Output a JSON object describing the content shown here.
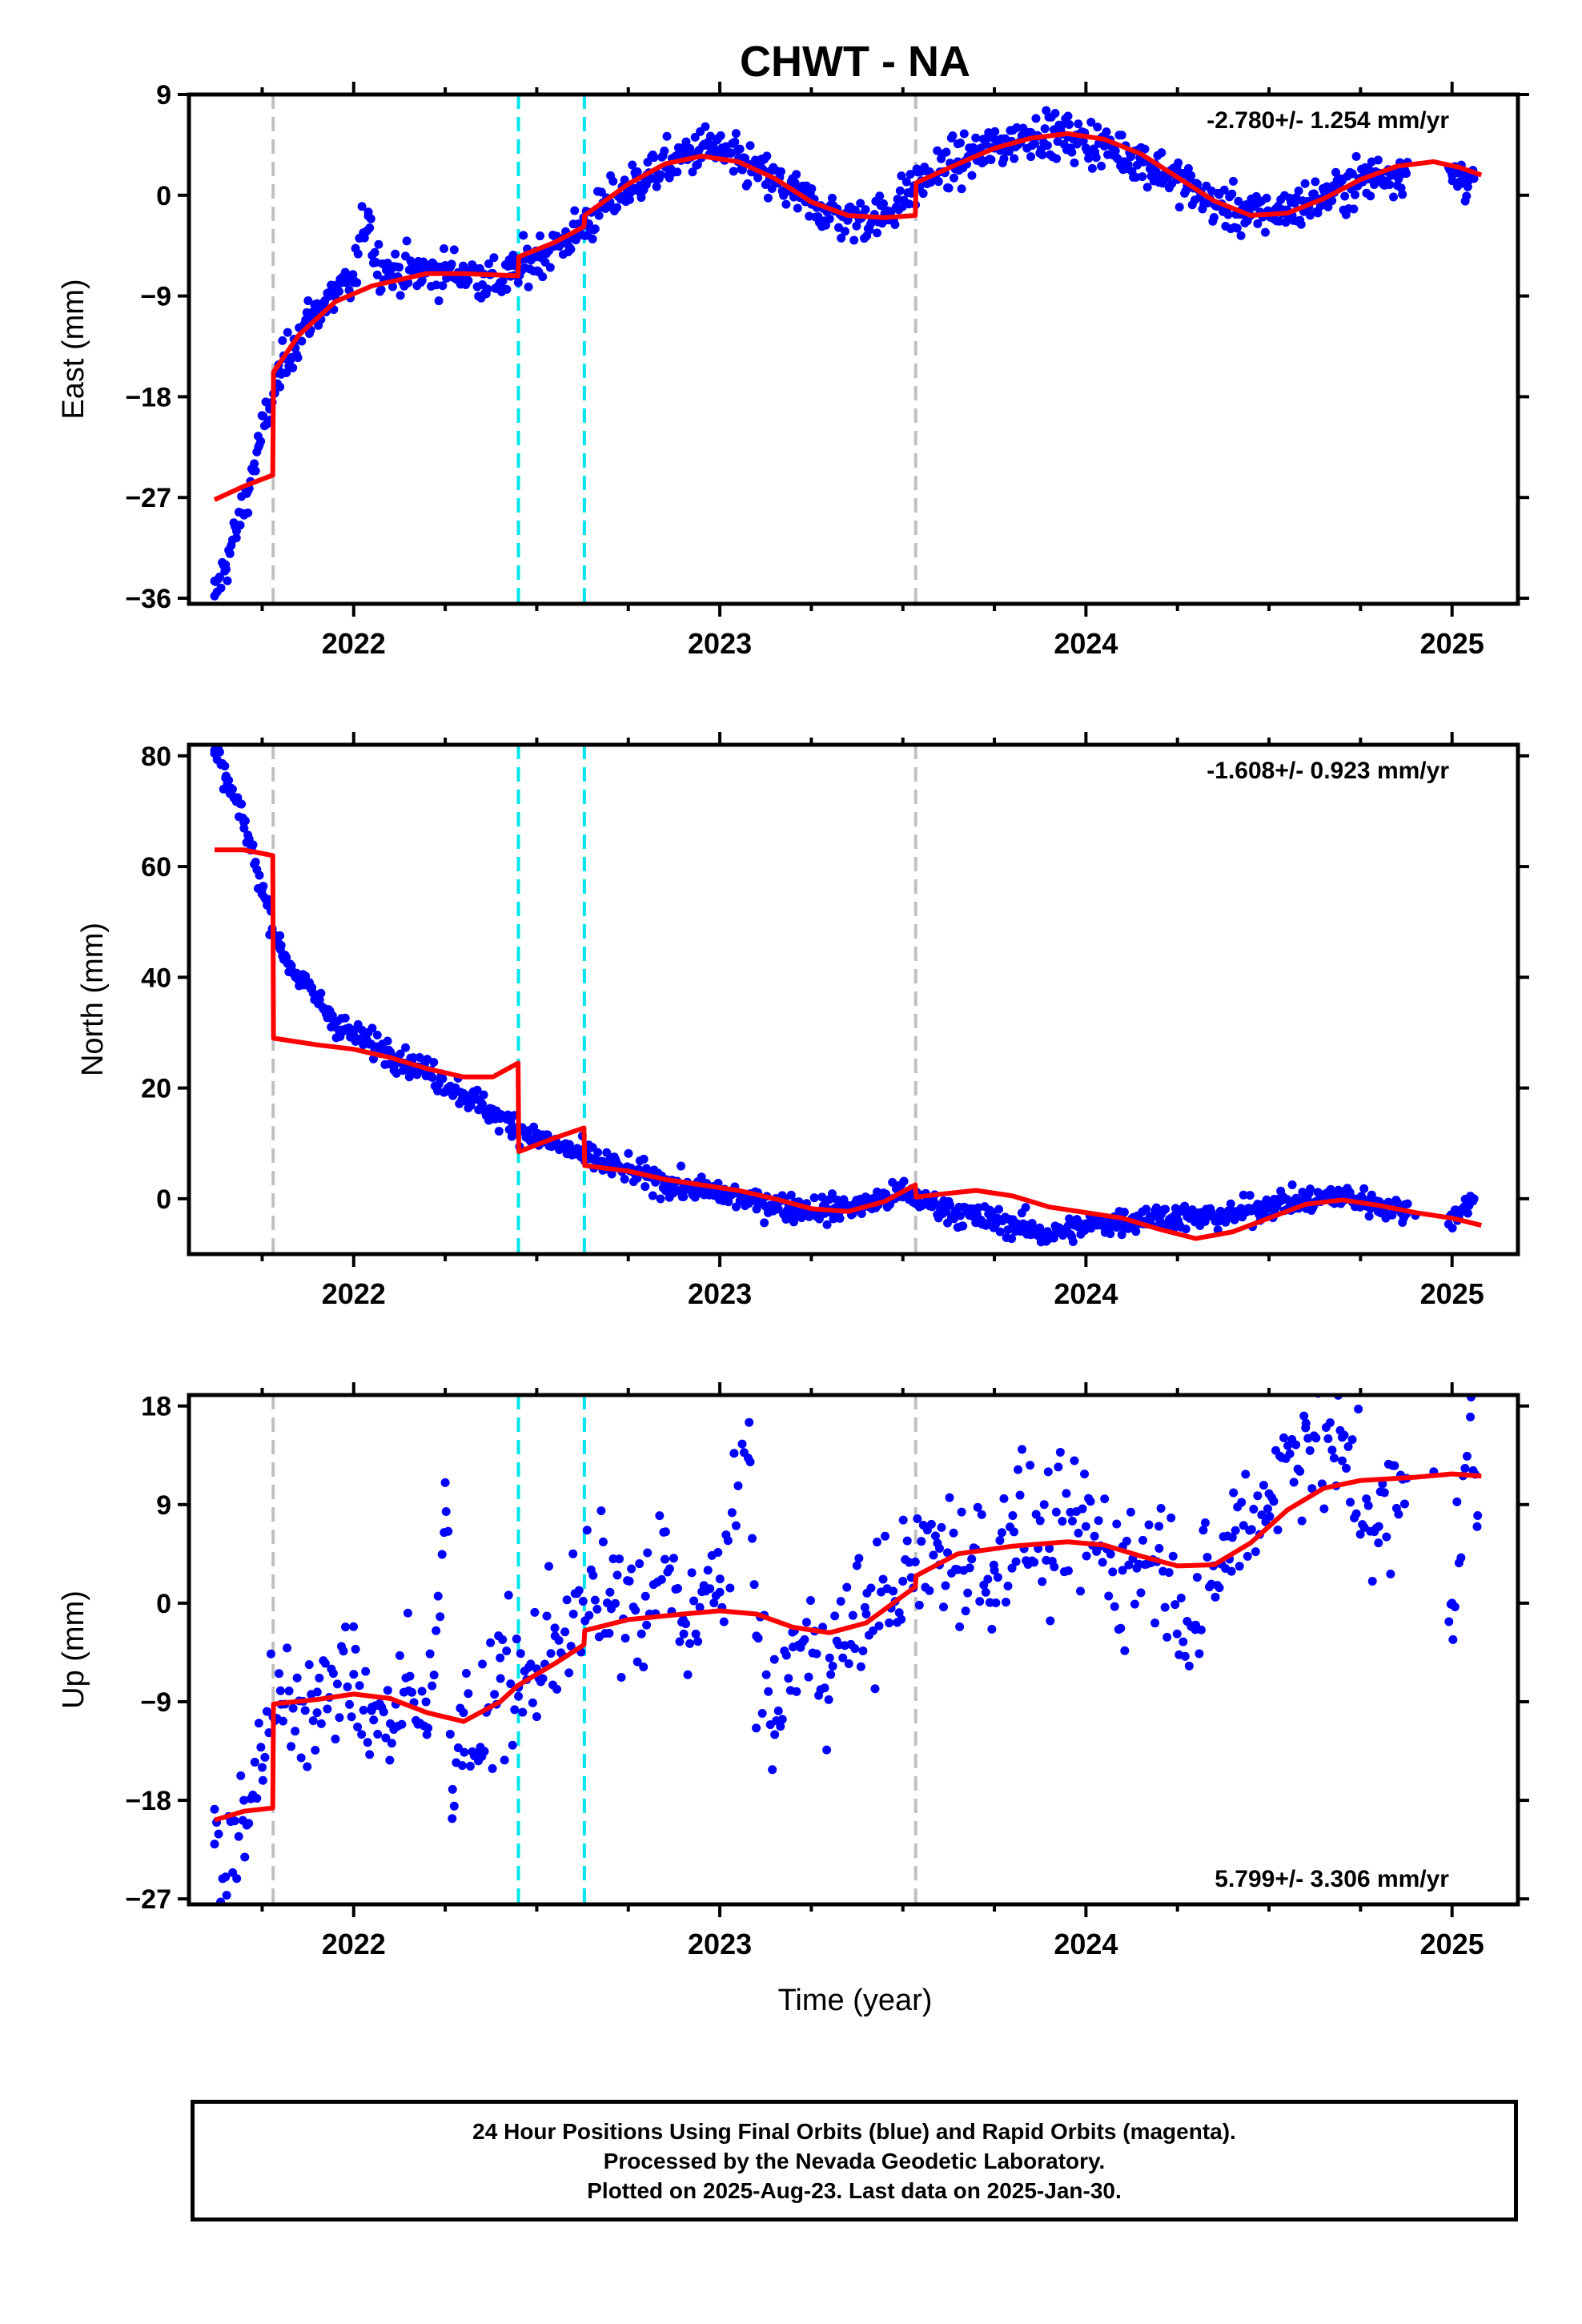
{
  "title": "CHWT - NA",
  "xlabel": "Time (year)",
  "footer": {
    "line1": "24 Hour Positions Using Final Orbits (blue) and Rapid Orbits (magenta).",
    "line2": "Processed by the Nevada Geodetic Laboratory.",
    "line3": "Plotted on 2025-Aug-23. Last data on 2025-Jan-30."
  },
  "colors": {
    "points": "#0000ff",
    "fit": "#ff0000",
    "gray_line": "#c0c0c0",
    "cyan_line": "#00e5ee"
  },
  "chart_data": [
    {
      "type": "scatter",
      "name": "east",
      "ylabel": "East (mm)",
      "rate": "-2.780+/- 1.254 mm/yr",
      "rate_position": "top-right",
      "xlim": [
        2021.55,
        2025.18
      ],
      "ylim": [
        -36.5,
        9
      ],
      "yticks": [
        9,
        0,
        -9,
        -18,
        -27,
        -36
      ],
      "ytick_labels": [
        "9",
        "0",
        "−9",
        "−18",
        "−27",
        "−36"
      ],
      "xticks": [
        2022,
        2023,
        2024,
        2025
      ],
      "xtick_labels": [
        "2022",
        "2023",
        "2024",
        "2025"
      ],
      "gray_events": [
        2021.78,
        2023.535
      ],
      "cyan_events": [
        2022.45,
        2022.63
      ],
      "fit": [
        [
          2021.62,
          -27.2
        ],
        [
          2021.7,
          -26.0
        ],
        [
          2021.779,
          -25.0
        ],
        [
          2021.781,
          -15.8
        ],
        [
          2021.85,
          -12.5
        ],
        [
          2021.95,
          -9.5
        ],
        [
          2022.05,
          -8.1
        ],
        [
          2022.2,
          -7.0
        ],
        [
          2022.3,
          -7.0
        ],
        [
          2022.449,
          -7.2
        ],
        [
          2022.451,
          -5.5
        ],
        [
          2022.55,
          -4.2
        ],
        [
          2022.629,
          -2.8
        ],
        [
          2022.631,
          -1.8
        ],
        [
          2022.75,
          1.0
        ],
        [
          2022.85,
          2.8
        ],
        [
          2022.95,
          3.5
        ],
        [
          2023.05,
          3.0
        ],
        [
          2023.15,
          1.5
        ],
        [
          2023.25,
          -0.6
        ],
        [
          2023.35,
          -1.8
        ],
        [
          2023.45,
          -2.0
        ],
        [
          2023.534,
          -1.8
        ],
        [
          2023.536,
          1.1
        ],
        [
          2023.65,
          2.8
        ],
        [
          2023.75,
          4.2
        ],
        [
          2023.85,
          5.1
        ],
        [
          2023.95,
          5.5
        ],
        [
          2024.05,
          5.0
        ],
        [
          2024.15,
          3.7
        ],
        [
          2024.25,
          1.6
        ],
        [
          2024.35,
          -0.5
        ],
        [
          2024.45,
          -1.8
        ],
        [
          2024.55,
          -1.6
        ],
        [
          2024.65,
          -0.3
        ],
        [
          2024.75,
          1.4
        ],
        [
          2024.85,
          2.6
        ],
        [
          2024.95,
          3.0
        ],
        [
          2025.02,
          2.5
        ],
        [
          2025.08,
          1.8
        ]
      ],
      "data": [
        [
          2021.62,
          -35.8
        ],
        [
          2021.65,
          -33.0
        ],
        [
          2021.68,
          -30.0
        ],
        [
          2021.71,
          -26.5
        ],
        [
          2021.74,
          -22.5
        ],
        [
          2021.77,
          -19.0
        ],
        [
          2021.8,
          -15.8
        ],
        [
          2021.84,
          -13.0
        ],
        [
          2021.88,
          -11.0
        ],
        [
          2021.92,
          -9.6
        ],
        [
          2021.96,
          -8.6
        ],
        [
          2022.0,
          -7.8
        ],
        [
          2022.02,
          -3.8
        ],
        [
          2022.04,
          -1.5
        ],
        [
          2022.06,
          -6.0
        ],
        [
          2022.1,
          -6.8
        ],
        [
          2022.2,
          -6.9
        ],
        [
          2022.3,
          -6.8
        ],
        [
          2022.4,
          -7.8
        ],
        [
          2022.5,
          -5.5
        ],
        [
          2022.6,
          -3.6
        ],
        [
          2022.7,
          -0.6
        ],
        [
          2022.8,
          1.8
        ],
        [
          2022.9,
          3.4
        ],
        [
          2022.97,
          4.4
        ],
        [
          2023.05,
          3.0
        ],
        [
          2023.15,
          1.2
        ],
        [
          2023.25,
          -0.8
        ],
        [
          2023.35,
          -2.2
        ],
        [
          2023.45,
          -1.8
        ],
        [
          2023.55,
          1.3
        ],
        [
          2023.65,
          3.0
        ],
        [
          2023.75,
          4.2
        ],
        [
          2023.85,
          5.6
        ],
        [
          2023.95,
          5.2
        ],
        [
          2024.05,
          4.4
        ],
        [
          2024.15,
          3.2
        ],
        [
          2024.25,
          1.4
        ],
        [
          2024.35,
          -0.8
        ],
        [
          2024.45,
          -1.8
        ],
        [
          2024.55,
          -1.3
        ],
        [
          2024.65,
          -0.2
        ],
        [
          2024.75,
          1.3
        ],
        [
          2024.85,
          2.2
        ],
        [
          2025.0,
          1.8
        ],
        [
          2025.06,
          1.5
        ]
      ]
    },
    {
      "type": "scatter",
      "name": "north",
      "ylabel": "North (mm)",
      "rate": "-1.608+/- 0.923 mm/yr",
      "rate_position": "top-right",
      "xlim": [
        2021.55,
        2025.18
      ],
      "ylim": [
        -10,
        82
      ],
      "yticks": [
        80,
        60,
        40,
        20,
        0
      ],
      "ytick_labels": [
        "80",
        "60",
        "40",
        "20",
        "0"
      ],
      "xticks": [
        2022,
        2023,
        2024,
        2025
      ],
      "xtick_labels": [
        "2022",
        "2023",
        "2024",
        "2025"
      ],
      "gray_events": [
        2021.78,
        2023.535
      ],
      "cyan_events": [
        2022.45,
        2022.63
      ],
      "fit": [
        [
          2021.62,
          63.0
        ],
        [
          2021.7,
          63.0
        ],
        [
          2021.779,
          62.0
        ],
        [
          2021.781,
          29.0
        ],
        [
          2021.9,
          27.8
        ],
        [
          2022.0,
          27.0
        ],
        [
          2022.1,
          25.5
        ],
        [
          2022.2,
          23.5
        ],
        [
          2022.3,
          22.0
        ],
        [
          2022.38,
          22.0
        ],
        [
          2022.449,
          24.5
        ],
        [
          2022.451,
          8.5
        ],
        [
          2022.55,
          11.0
        ],
        [
          2022.629,
          12.8
        ],
        [
          2022.631,
          6.0
        ],
        [
          2022.75,
          5.0
        ],
        [
          2022.85,
          3.5
        ],
        [
          2022.95,
          2.5
        ],
        [
          2023.05,
          1.5
        ],
        [
          2023.15,
          0.0
        ],
        [
          2023.25,
          -1.8
        ],
        [
          2023.35,
          -2.3
        ],
        [
          2023.45,
          -0.5
        ],
        [
          2023.534,
          2.5
        ],
        [
          2023.536,
          0.3
        ],
        [
          2023.6,
          0.8
        ],
        [
          2023.7,
          1.5
        ],
        [
          2023.8,
          0.5
        ],
        [
          2023.9,
          -1.5
        ],
        [
          2024.0,
          -2.5
        ],
        [
          2024.1,
          -3.5
        ],
        [
          2024.2,
          -5.5
        ],
        [
          2024.3,
          -7.2
        ],
        [
          2024.4,
          -6.0
        ],
        [
          2024.5,
          -3.5
        ],
        [
          2024.6,
          -1.0
        ],
        [
          2024.7,
          -0.2
        ],
        [
          2024.8,
          -1.2
        ],
        [
          2024.9,
          -2.5
        ],
        [
          2025.0,
          -3.5
        ],
        [
          2025.08,
          -4.8
        ]
      ],
      "data": [
        [
          2021.62,
          81.0
        ],
        [
          2021.65,
          76.0
        ],
        [
          2021.7,
          68.0
        ],
        [
          2021.75,
          56.0
        ],
        [
          2021.8,
          45.0
        ],
        [
          2021.85,
          40.0
        ],
        [
          2021.9,
          36.0
        ],
        [
          2021.95,
          32.0
        ],
        [
          2022.0,
          29.5
        ],
        [
          2022.1,
          26.5
        ],
        [
          2022.2,
          23.0
        ],
        [
          2022.3,
          19.0
        ],
        [
          2022.4,
          14.5
        ],
        [
          2022.5,
          11.0
        ],
        [
          2022.6,
          8.5
        ],
        [
          2022.7,
          6.0
        ],
        [
          2022.8,
          4.0
        ],
        [
          2022.9,
          2.0
        ],
        [
          2023.0,
          1.0
        ],
        [
          2023.1,
          -0.5
        ],
        [
          2023.2,
          -1.5
        ],
        [
          2023.3,
          -2.0
        ],
        [
          2023.4,
          -1.0
        ],
        [
          2023.5,
          1.0
        ],
        [
          2023.6,
          -1.5
        ],
        [
          2023.7,
          -3.5
        ],
        [
          2023.8,
          -4.5
        ],
        [
          2023.9,
          -6.5
        ],
        [
          2024.0,
          -5.0
        ],
        [
          2024.1,
          -4.0
        ],
        [
          2024.2,
          -3.0
        ],
        [
          2024.3,
          -3.5
        ],
        [
          2024.4,
          -3.0
        ],
        [
          2024.5,
          -1.0
        ],
        [
          2024.6,
          -0.5
        ],
        [
          2024.7,
          0.5
        ],
        [
          2024.8,
          -1.0
        ],
        [
          2024.9,
          -3.0
        ],
        [
          2025.0,
          -3.0
        ],
        [
          2025.06,
          0.0
        ]
      ]
    },
    {
      "type": "scatter",
      "name": "up",
      "ylabel": "Up (mm)",
      "rate": "5.799+/- 3.306 mm/yr",
      "rate_position": "bottom-right",
      "xlim": [
        2021.55,
        2025.18
      ],
      "ylim": [
        -27.5,
        19
      ],
      "yticks": [
        18,
        9,
        0,
        -9,
        -18,
        -27
      ],
      "ytick_labels": [
        "18",
        "9",
        "0",
        "−9",
        "−18",
        "−27"
      ],
      "xticks": [
        2022,
        2023,
        2024,
        2025
      ],
      "xtick_labels": [
        "2022",
        "2023",
        "2024",
        "2025"
      ],
      "gray_events": [
        2021.78,
        2023.535
      ],
      "cyan_events": [
        2022.45,
        2022.63
      ],
      "fit": [
        [
          2021.62,
          -19.8
        ],
        [
          2021.7,
          -19.0
        ],
        [
          2021.779,
          -18.7
        ],
        [
          2021.781,
          -9.2
        ],
        [
          2021.9,
          -8.8
        ],
        [
          2022.0,
          -8.3
        ],
        [
          2022.1,
          -8.7
        ],
        [
          2022.2,
          -10.0
        ],
        [
          2022.3,
          -10.8
        ],
        [
          2022.4,
          -9.0
        ],
        [
          2022.449,
          -7.5
        ],
        [
          2022.55,
          -5.5
        ],
        [
          2022.629,
          -3.8
        ],
        [
          2022.631,
          -2.5
        ],
        [
          2022.75,
          -1.5
        ],
        [
          2022.9,
          -1.0
        ],
        [
          2023.0,
          -0.7
        ],
        [
          2023.1,
          -1.0
        ],
        [
          2023.2,
          -2.2
        ],
        [
          2023.3,
          -2.7
        ],
        [
          2023.4,
          -1.8
        ],
        [
          2023.534,
          1.5
        ],
        [
          2023.536,
          2.5
        ],
        [
          2023.65,
          4.5
        ],
        [
          2023.8,
          5.2
        ],
        [
          2023.95,
          5.6
        ],
        [
          2024.05,
          5.3
        ],
        [
          2024.15,
          4.3
        ],
        [
          2024.25,
          3.4
        ],
        [
          2024.35,
          3.5
        ],
        [
          2024.45,
          5.5
        ],
        [
          2024.55,
          8.5
        ],
        [
          2024.65,
          10.5
        ],
        [
          2024.75,
          11.2
        ],
        [
          2024.9,
          11.5
        ],
        [
          2025.0,
          11.8
        ],
        [
          2025.08,
          11.6
        ]
      ],
      "data": [
        [
          2021.62,
          -22.0
        ],
        [
          2021.65,
          -25.0
        ],
        [
          2021.7,
          -18.0
        ],
        [
          2021.75,
          -15.0
        ],
        [
          2021.8,
          -8.0
        ],
        [
          2021.9,
          -10.0
        ],
        [
          2022.0,
          -6.5
        ],
        [
          2022.05,
          -9.5
        ],
        [
          2022.1,
          -11.0
        ],
        [
          2022.15,
          -8.0
        ],
        [
          2022.2,
          -12.0
        ],
        [
          2022.25,
          11.0
        ],
        [
          2022.27,
          -17.0
        ],
        [
          2022.3,
          -10.0
        ],
        [
          2022.35,
          -14.0
        ],
        [
          2022.4,
          -5.0
        ],
        [
          2022.45,
          -8.5
        ],
        [
          2022.5,
          -6.0
        ],
        [
          2022.55,
          -3.0
        ],
        [
          2022.6,
          -1.0
        ],
        [
          2022.7,
          1.0
        ],
        [
          2022.8,
          -2.0
        ],
        [
          2022.85,
          4.0
        ],
        [
          2022.9,
          -1.5
        ],
        [
          2023.0,
          1.0
        ],
        [
          2023.08,
          16.5
        ],
        [
          2023.1,
          -3.0
        ],
        [
          2023.15,
          -12.0
        ],
        [
          2023.2,
          -4.0
        ],
        [
          2023.3,
          -5.0
        ],
        [
          2023.4,
          -1.0
        ],
        [
          2023.5,
          2.0
        ],
        [
          2023.6,
          5.0
        ],
        [
          2023.75,
          3.0
        ],
        [
          2023.8,
          8.0
        ],
        [
          2023.9,
          5.0
        ],
        [
          2024.0,
          7.0
        ],
        [
          2024.1,
          3.0
        ],
        [
          2024.2,
          5.0
        ],
        [
          2024.3,
          -2.0
        ],
        [
          2024.4,
          6.0
        ],
        [
          2024.5,
          10.0
        ],
        [
          2024.6,
          16.0
        ],
        [
          2024.7,
          13.0
        ],
        [
          2024.8,
          7.0
        ],
        [
          2024.95,
          12.0
        ],
        [
          2025.0,
          0.0
        ],
        [
          2025.05,
          17.0
        ],
        [
          2025.07,
          8.0
        ]
      ]
    }
  ]
}
